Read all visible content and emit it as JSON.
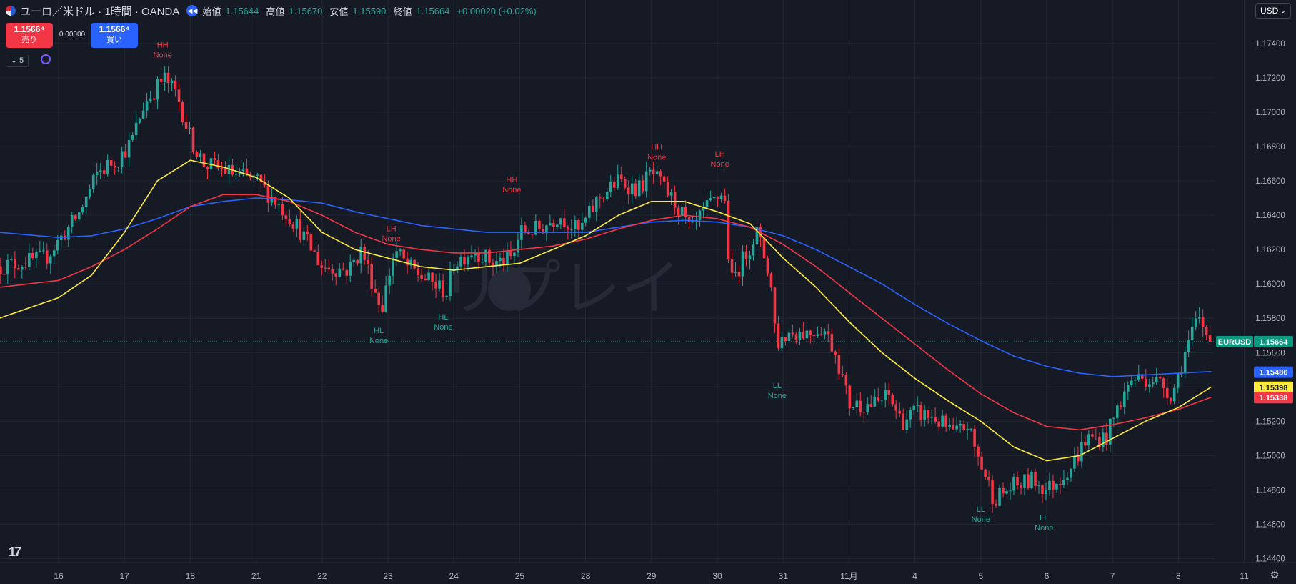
{
  "header": {
    "symbol_title": "ユーロ／米ドル · 1時間 · OANDA",
    "open_label": "始値",
    "open_value": "1.15644",
    "high_label": "高値",
    "high_value": "1.15670",
    "low_label": "安値",
    "low_value": "1.15590",
    "close_label": "終値",
    "close_value": "1.15664",
    "change": "+0.00020 (+0.02%)"
  },
  "trade": {
    "sell_price": "1.1566⁴",
    "sell_label": "売り",
    "buy_price": "1.1566⁴",
    "buy_label": "買い",
    "spread": "0.00000"
  },
  "indicator_count": "5",
  "currency_button": "USD",
  "watermark": "リプレイ",
  "icons": {
    "flag": "eu-us-flag-icon",
    "replay": "rewind-icon",
    "sync": "sync-icon",
    "logo": "tradingview-logo",
    "settings": "gear-icon"
  },
  "colors": {
    "bg": "#161a25",
    "up": "#26a69a",
    "down": "#f23645",
    "ema_yellow": "#ffeb3b",
    "ema_red": "#f23645",
    "ema_blue": "#2962ff"
  },
  "price_axis": {
    "ticks": [
      "1.17400",
      "1.17200",
      "1.17000",
      "1.16800",
      "1.16600",
      "1.16400",
      "1.16200",
      "1.16000",
      "1.15800",
      "1.15600",
      "1.15400",
      "1.15200",
      "1.15000",
      "1.14800",
      "1.14600",
      "1.14400"
    ],
    "tick_values": [
      1.174,
      1.172,
      1.17,
      1.168,
      1.166,
      1.164,
      1.162,
      1.16,
      1.158,
      1.156,
      1.154,
      1.152,
      1.15,
      1.148,
      1.146,
      1.144
    ],
    "badges": [
      {
        "text": "EURUSD",
        "value": 1.15664,
        "color": "#089981",
        "type": "symbol"
      },
      {
        "text": "1.15664",
        "value": 1.15664,
        "color": "#089981",
        "type": "price"
      },
      {
        "text": "1.15486",
        "value": 1.15486,
        "color": "#2962ff",
        "type": "price"
      },
      {
        "text": "1.15398",
        "value": 1.15398,
        "color": "#ffeb3b",
        "type": "price"
      },
      {
        "text": "1.15338",
        "value": 1.15338,
        "color": "#f23645",
        "type": "price"
      }
    ]
  },
  "time_axis": {
    "labels": [
      "16",
      "17",
      "18",
      "21",
      "22",
      "23",
      "24",
      "25",
      "28",
      "29",
      "30",
      "31",
      "11月",
      "4",
      "5",
      "6",
      "7",
      "8",
      "11"
    ],
    "positions": [
      0,
      1,
      2,
      3,
      4,
      5,
      6,
      7,
      8,
      9,
      10,
      11,
      12,
      13,
      14,
      15,
      16,
      17,
      18
    ]
  },
  "chart_data": {
    "type": "candlestick",
    "symbol": "EURUSD",
    "timeframe": "1時間",
    "ylim": [
      1.1435,
      1.1755
    ],
    "grid": true,
    "last_price": 1.15664,
    "anchors": [
      [
        -0.9,
        1.161
      ],
      [
        -0.2,
        1.1615
      ],
      [
        0.3,
        1.164
      ],
      [
        0.6,
        1.1665
      ],
      [
        0.9,
        1.1673
      ],
      [
        1.1,
        1.1682
      ],
      [
        1.3,
        1.1705
      ],
      [
        1.6,
        1.172
      ],
      [
        1.8,
        1.171
      ],
      [
        2.0,
        1.1685
      ],
      [
        2.2,
        1.167
      ],
      [
        2.6,
        1.1665
      ],
      [
        3.0,
        1.166
      ],
      [
        3.3,
        1.1648
      ],
      [
        3.6,
        1.1635
      ],
      [
        4.0,
        1.161
      ],
      [
        4.4,
        1.1608
      ],
      [
        4.6,
        1.162
      ],
      [
        4.9,
        1.1585
      ],
      [
        5.1,
        1.162
      ],
      [
        5.3,
        1.161
      ],
      [
        5.6,
        1.1602
      ],
      [
        5.9,
        1.1595
      ],
      [
        6.0,
        1.1612
      ],
      [
        6.3,
        1.162
      ],
      [
        6.6,
        1.1612
      ],
      [
        6.9,
        1.1615
      ],
      [
        7.0,
        1.163
      ],
      [
        7.3,
        1.1632
      ],
      [
        7.6,
        1.164
      ],
      [
        7.9,
        1.163
      ],
      [
        8.2,
        1.165
      ],
      [
        8.5,
        1.166
      ],
      [
        8.8,
        1.1655
      ],
      [
        9.0,
        1.1665
      ],
      [
        9.2,
        1.1655
      ],
      [
        9.4,
        1.1645
      ],
      [
        9.6,
        1.163
      ],
      [
        9.8,
        1.1642
      ],
      [
        10.0,
        1.165
      ],
      [
        10.1,
        1.1655
      ],
      [
        10.2,
        1.16
      ],
      [
        10.4,
        1.1615
      ],
      [
        10.6,
        1.163
      ],
      [
        10.8,
        1.1605
      ],
      [
        10.9,
        1.1565
      ],
      [
        11.1,
        1.1572
      ],
      [
        11.4,
        1.1572
      ],
      [
        11.6,
        1.1575
      ],
      [
        11.8,
        1.156
      ],
      [
        12.0,
        1.153
      ],
      [
        12.4,
        1.153
      ],
      [
        12.6,
        1.1535
      ],
      [
        12.8,
        1.152
      ],
      [
        13.0,
        1.1525
      ],
      [
        13.3,
        1.1522
      ],
      [
        13.6,
        1.1512
      ],
      [
        13.8,
        1.1518
      ],
      [
        13.9,
        1.1505
      ],
      [
        14.0,
        1.1495
      ],
      [
        14.2,
        1.1475
      ],
      [
        14.5,
        1.1482
      ],
      [
        14.8,
        1.1486
      ],
      [
        15.0,
        1.148
      ],
      [
        15.2,
        1.1487
      ],
      [
        15.4,
        1.1495
      ],
      [
        15.6,
        1.151
      ],
      [
        15.9,
        1.151
      ],
      [
        16.1,
        1.153
      ],
      [
        16.3,
        1.1545
      ],
      [
        16.6,
        1.1545
      ],
      [
        16.8,
        1.154
      ],
      [
        16.9,
        1.1535
      ],
      [
        17.1,
        1.156
      ],
      [
        17.3,
        1.158
      ],
      [
        17.5,
        1.1566
      ]
    ],
    "ema_yellow": [
      [
        -0.9,
        1.158
      ],
      [
        0.0,
        1.1592
      ],
      [
        0.5,
        1.1605
      ],
      [
        1.0,
        1.163
      ],
      [
        1.5,
        1.166
      ],
      [
        2.0,
        1.1672
      ],
      [
        2.5,
        1.1668
      ],
      [
        3.0,
        1.1662
      ],
      [
        3.5,
        1.165
      ],
      [
        4.0,
        1.163
      ],
      [
        4.5,
        1.162
      ],
      [
        5.0,
        1.1615
      ],
      [
        5.5,
        1.161
      ],
      [
        6.0,
        1.1608
      ],
      [
        6.5,
        1.161
      ],
      [
        7.0,
        1.1612
      ],
      [
        7.5,
        1.162
      ],
      [
        8.0,
        1.1628
      ],
      [
        8.5,
        1.164
      ],
      [
        9.0,
        1.1648
      ],
      [
        9.5,
        1.1648
      ],
      [
        10.0,
        1.1642
      ],
      [
        10.5,
        1.1635
      ],
      [
        11.0,
        1.1615
      ],
      [
        11.5,
        1.1598
      ],
      [
        12.0,
        1.1578
      ],
      [
        12.5,
        1.156
      ],
      [
        13.0,
        1.1545
      ],
      [
        13.5,
        1.1532
      ],
      [
        14.0,
        1.152
      ],
      [
        14.5,
        1.1505
      ],
      [
        15.0,
        1.1497
      ],
      [
        15.5,
        1.15
      ],
      [
        16.0,
        1.151
      ],
      [
        16.5,
        1.152
      ],
      [
        17.0,
        1.1528
      ],
      [
        17.5,
        1.154
      ]
    ],
    "ema_red": [
      [
        -0.9,
        1.1598
      ],
      [
        0.0,
        1.1602
      ],
      [
        0.5,
        1.161
      ],
      [
        1.0,
        1.162
      ],
      [
        1.5,
        1.1632
      ],
      [
        2.0,
        1.1645
      ],
      [
        2.5,
        1.1652
      ],
      [
        3.0,
        1.1652
      ],
      [
        3.5,
        1.1648
      ],
      [
        4.0,
        1.164
      ],
      [
        4.5,
        1.163
      ],
      [
        5.0,
        1.1623
      ],
      [
        5.5,
        1.162
      ],
      [
        6.0,
        1.1618
      ],
      [
        6.5,
        1.1618
      ],
      [
        7.0,
        1.162
      ],
      [
        7.5,
        1.1622
      ],
      [
        8.0,
        1.1626
      ],
      [
        8.5,
        1.1632
      ],
      [
        9.0,
        1.1637
      ],
      [
        9.5,
        1.164
      ],
      [
        10.0,
        1.1638
      ],
      [
        10.5,
        1.1633
      ],
      [
        11.0,
        1.1623
      ],
      [
        11.5,
        1.161
      ],
      [
        12.0,
        1.1595
      ],
      [
        12.5,
        1.158
      ],
      [
        13.0,
        1.1565
      ],
      [
        13.5,
        1.155
      ],
      [
        14.0,
        1.1536
      ],
      [
        14.5,
        1.1525
      ],
      [
        15.0,
        1.1517
      ],
      [
        15.5,
        1.1515
      ],
      [
        16.0,
        1.1518
      ],
      [
        16.5,
        1.1522
      ],
      [
        17.0,
        1.1527
      ],
      [
        17.5,
        1.1534
      ]
    ],
    "ema_blue": [
      [
        -0.9,
        1.163
      ],
      [
        0.0,
        1.1627
      ],
      [
        0.5,
        1.1628
      ],
      [
        1.0,
        1.1632
      ],
      [
        1.5,
        1.1638
      ],
      [
        2.0,
        1.1645
      ],
      [
        2.5,
        1.1648
      ],
      [
        3.0,
        1.165
      ],
      [
        3.5,
        1.1649
      ],
      [
        4.0,
        1.1647
      ],
      [
        4.5,
        1.1642
      ],
      [
        5.0,
        1.1638
      ],
      [
        5.5,
        1.1634
      ],
      [
        6.0,
        1.1632
      ],
      [
        6.5,
        1.163
      ],
      [
        7.0,
        1.163
      ],
      [
        7.5,
        1.163
      ],
      [
        8.0,
        1.163
      ],
      [
        8.5,
        1.1633
      ],
      [
        9.0,
        1.1636
      ],
      [
        9.5,
        1.1637
      ],
      [
        10.0,
        1.1636
      ],
      [
        10.5,
        1.1633
      ],
      [
        11.0,
        1.1628
      ],
      [
        11.5,
        1.162
      ],
      [
        12.0,
        1.161
      ],
      [
        12.5,
        1.16
      ],
      [
        13.0,
        1.1588
      ],
      [
        13.5,
        1.1577
      ],
      [
        14.0,
        1.1567
      ],
      [
        14.5,
        1.1558
      ],
      [
        15.0,
        1.1552
      ],
      [
        15.5,
        1.1548
      ],
      [
        16.0,
        1.1546
      ],
      [
        16.5,
        1.1547
      ],
      [
        17.0,
        1.1548
      ],
      [
        17.5,
        1.1549
      ]
    ],
    "pivot_labels": [
      {
        "type": "HH",
        "sub": "None",
        "x": 1.58,
        "price": 1.17285,
        "pos": "above",
        "color": "#f23645"
      },
      {
        "type": "LH",
        "sub": "None",
        "x": 5.05,
        "price": 1.16215,
        "pos": "above",
        "color": "#f23645"
      },
      {
        "type": "HL",
        "sub": "None",
        "x": 4.86,
        "price": 1.1578,
        "pos": "below",
        "color": "#26a69a"
      },
      {
        "type": "HL",
        "sub": "None",
        "x": 5.84,
        "price": 1.1586,
        "pos": "below",
        "color": "#26a69a"
      },
      {
        "type": "HH",
        "sub": "None",
        "x": 6.88,
        "price": 1.165,
        "pos": "above",
        "color": "#f23645"
      },
      {
        "type": "HH",
        "sub": "None",
        "x": 9.08,
        "price": 1.1669,
        "pos": "above",
        "color": "#f23645"
      },
      {
        "type": "LH",
        "sub": "None",
        "x": 10.04,
        "price": 1.1665,
        "pos": "above",
        "color": "#f23645"
      },
      {
        "type": "LL",
        "sub": "None",
        "x": 10.91,
        "price": 1.1546,
        "pos": "below",
        "color": "#26a69a"
      },
      {
        "type": "LL",
        "sub": "None",
        "x": 14.0,
        "price": 1.1474,
        "pos": "below",
        "color": "#26a69a"
      },
      {
        "type": "LL",
        "sub": "None",
        "x": 14.96,
        "price": 1.1469,
        "pos": "below",
        "color": "#26a69a"
      }
    ]
  }
}
